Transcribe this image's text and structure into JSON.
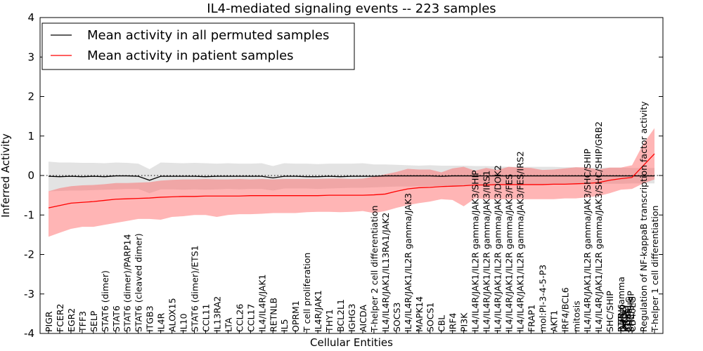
{
  "chart_data": {
    "type": "line",
    "title": "IL4-mediated signaling events -- 223 samples",
    "xlabel": "Cellular Entities",
    "ylabel": "Inferred Activity",
    "ylim": [
      -4,
      4
    ],
    "yticks": [
      -4,
      -3,
      -2,
      -1,
      0,
      1,
      2,
      3,
      4
    ],
    "legend_position": "top-left",
    "zero_line": "dotted",
    "colors": {
      "permuted_line": "#000000",
      "permuted_band": "#c8c8c8",
      "patient_line": "#ff0000",
      "patient_band": "#ff5c5c"
    },
    "categories": [
      "PIGR",
      "FCER2",
      "EGR2",
      "TFF3",
      "SELP",
      "STAT6 (dimer)",
      "STAT6",
      "STAT6 (dimer)/PARP14",
      "STAT6 (cleaved dimer)",
      "ITGB3",
      "IL4R",
      "ALOX15",
      "IL10",
      "STAT6 (dimer)/ETS1",
      "CCL11",
      "IL13RA2",
      "LTA",
      "CCL26",
      "CCL17",
      "IL4/IL4R/JAK1",
      "RETNLB",
      "IL5",
      "OPRM1",
      "T cell proliferation",
      "IL4R/JAK1",
      "THY1",
      "BCL2L1",
      "IGHG3",
      "AICDA",
      "T-helper 2 cell differentiation",
      "IL4/IL4R/JAK1/IL13RA1/JAK2",
      "SOCS3",
      "IL4/IL4R/JAK1/IL2R gamma/JAK3",
      "MAPK14",
      "SOCS1",
      "CBL",
      "IRF4",
      "PI3K",
      "IL4/IL4R/JAK1/IL2R gamma/JAK3/SHIP",
      "IL4/IL4R/JAK1/IL2R gamma/JAK3/IRS1",
      "IL4/IL4R/JAK1/IL2R gamma/JAK3/DOK2",
      "IL4/IL4R/JAK1/IL2R gamma/JAK3/FES",
      "IL4/IL4R/JAK1/IL2R gamma/JAK3/FES/IRS2",
      "FRAP1",
      "mol:PI-3-4-5-P3",
      "AKT1",
      "IRF4/BCL6",
      "mitosis",
      "IL4/IL4R/JAK1/IL2R gamma/JAK3/SHC/SHIP",
      "IL4/IL4R/JAK1/IL2R gamma/JAK3/SHC/SHIP/GRB2",
      "SHC/SHIP",
      "IL2R gamma",
      "CD40LG",
      "Regulation of NF-kappaB transcription factor activity",
      "T-helper 1 cell differentiation"
    ],
    "extra_labels": [
      "PTPN6",
      "GRB2",
      "JAK3",
      "KRT1",
      "IGHG1",
      "CD40LG",
      "SHC/SHIP"
    ],
    "series": [
      {
        "name": "Mean activity in all permuted samples",
        "values": [
          -0.02,
          -0.03,
          -0.02,
          -0.03,
          -0.02,
          -0.03,
          -0.01,
          -0.01,
          -0.02,
          -0.12,
          -0.02,
          -0.02,
          -0.02,
          -0.02,
          -0.03,
          -0.02,
          -0.02,
          -0.02,
          -0.02,
          -0.02,
          -0.06,
          -0.02,
          -0.02,
          -0.03,
          -0.03,
          -0.02,
          -0.03,
          -0.02,
          -0.02,
          -0.02,
          -0.01,
          -0.01,
          -0.01,
          -0.01,
          -0.01,
          -0.02,
          -0.01,
          -0.01,
          -0.01,
          -0.01,
          -0.01,
          -0.01,
          -0.01,
          -0.01,
          -0.01,
          -0.01,
          -0.01,
          -0.01,
          -0.01,
          -0.01,
          -0.01,
          -0.01,
          -0.01,
          -0.01,
          -0.01
        ],
        "upper": [
          0.35,
          0.33,
          0.33,
          0.32,
          0.32,
          0.31,
          0.33,
          0.32,
          0.3,
          0.16,
          0.33,
          0.32,
          0.31,
          0.32,
          0.31,
          0.3,
          0.31,
          0.3,
          0.3,
          0.31,
          0.24,
          0.31,
          0.3,
          0.3,
          0.29,
          0.3,
          0.3,
          0.3,
          0.31,
          0.28,
          0.28,
          0.27,
          0.26,
          0.25,
          0.26,
          0.25,
          0.25,
          0.25,
          0.24,
          0.24,
          0.23,
          0.22,
          0.22,
          0.22,
          0.22,
          0.22,
          0.21,
          0.21,
          0.2,
          0.2,
          0.2,
          0.2,
          0.19,
          0.19,
          0.19
        ],
        "lower": [
          -0.4,
          -0.39,
          -0.38,
          -0.38,
          -0.37,
          -0.36,
          -0.35,
          -0.34,
          -0.34,
          -0.45,
          -0.35,
          -0.35,
          -0.36,
          -0.35,
          -0.36,
          -0.35,
          -0.34,
          -0.35,
          -0.34,
          -0.34,
          -0.38,
          -0.33,
          -0.33,
          -0.33,
          -0.34,
          -0.33,
          -0.32,
          -0.31,
          -0.31,
          -0.3,
          -0.29,
          -0.28,
          -0.28,
          -0.27,
          -0.27,
          -0.26,
          -0.26,
          -0.25,
          -0.25,
          -0.25,
          -0.24,
          -0.24,
          -0.24,
          -0.23,
          -0.23,
          -0.23,
          -0.22,
          -0.22,
          -0.22,
          -0.21,
          -0.21,
          -0.21,
          -0.2,
          -0.2,
          -0.2
        ]
      },
      {
        "name": "Mean activity in patient samples",
        "values": [
          -0.82,
          -0.76,
          -0.7,
          -0.68,
          -0.66,
          -0.63,
          -0.6,
          -0.59,
          -0.58,
          -0.57,
          -0.55,
          -0.54,
          -0.53,
          -0.53,
          -0.52,
          -0.52,
          -0.52,
          -0.52,
          -0.51,
          -0.51,
          -0.51,
          -0.51,
          -0.51,
          -0.51,
          -0.51,
          -0.5,
          -0.5,
          -0.5,
          -0.5,
          -0.49,
          -0.47,
          -0.4,
          -0.34,
          -0.31,
          -0.3,
          -0.28,
          -0.27,
          -0.26,
          -0.24,
          -0.24,
          -0.23,
          -0.23,
          -0.23,
          -0.23,
          -0.23,
          -0.22,
          -0.22,
          -0.21,
          -0.2,
          -0.18,
          -0.12,
          -0.08,
          -0.05,
          0.25,
          0.55
        ],
        "upper": [
          -0.4,
          -0.32,
          -0.27,
          -0.25,
          -0.24,
          -0.22,
          -0.19,
          -0.19,
          -0.18,
          -0.17,
          -0.13,
          -0.11,
          -0.1,
          -0.1,
          -0.09,
          -0.1,
          -0.1,
          -0.09,
          -0.1,
          -0.09,
          -0.1,
          -0.09,
          -0.09,
          -0.09,
          -0.09,
          -0.08,
          -0.08,
          -0.09,
          -0.08,
          -0.03,
          0.03,
          0.09,
          0.17,
          0.15,
          0.15,
          0.08,
          0.18,
          0.22,
          0.12,
          0.19,
          0.14,
          0.22,
          0.2,
          0.19,
          0.14,
          0.15,
          0.18,
          0.21,
          0.2,
          0.15,
          0.2,
          0.2,
          0.26,
          0.8,
          1.2
        ],
        "lower": [
          -1.55,
          -1.45,
          -1.35,
          -1.3,
          -1.3,
          -1.25,
          -1.2,
          -1.15,
          -1.1,
          -1.1,
          -1.12,
          -1.05,
          -1.03,
          -1.0,
          -1.0,
          -1.05,
          -1.0,
          -0.98,
          -0.98,
          -0.97,
          -0.95,
          -0.95,
          -0.95,
          -0.93,
          -0.92,
          -0.92,
          -0.93,
          -0.92,
          -0.9,
          -0.95,
          -0.9,
          -0.82,
          -0.75,
          -0.7,
          -0.66,
          -0.6,
          -0.62,
          -0.78,
          -0.58,
          -0.6,
          -0.6,
          -0.6,
          -0.6,
          -0.6,
          -0.6,
          -0.6,
          -0.58,
          -0.58,
          -0.55,
          -0.52,
          -0.45,
          -0.36,
          -0.34,
          -0.2,
          -0.1
        ]
      }
    ]
  }
}
